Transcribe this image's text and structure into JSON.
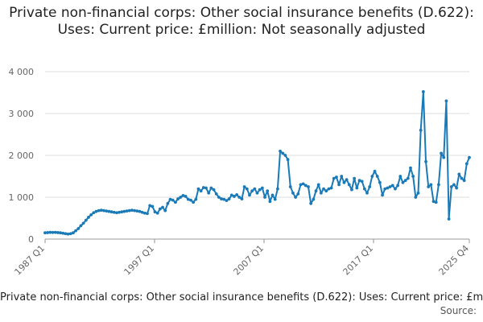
{
  "title": "Private non-financial corps: Other social insurance benefits (D.622): Uses: Current price: £million: Not seasonally adjusted",
  "footer": {
    "series_label": "Private non-financial corps: Other social insurance benefits (D.622): Uses: Current price: £million: Not seasonally adjusted",
    "source_label": "Source: "
  },
  "colors": {
    "line": "#1a7ab8",
    "grid": "#dddddd",
    "axis": "#999999"
  },
  "chart_data": {
    "type": "line",
    "title": "Private non-financial corps: Other social insurance benefits (D.622): Uses: Current price: £million: Not seasonally adjusted",
    "xlabel": "",
    "ylabel": "",
    "ylim": [
      0,
      4000
    ],
    "yticks": [
      0,
      1000,
      2000,
      3000,
      4000
    ],
    "ytick_labels": [
      "0",
      "1 000",
      "2 000",
      "3 000",
      "4 000"
    ],
    "xticks": [
      "1987 Q1",
      "1997 Q1",
      "2007 Q1",
      "2017 Q1",
      "2025 Q4"
    ],
    "x_start": "1987 Q1",
    "x_end": "2025 Q4",
    "grid": true,
    "series": [
      {
        "name": "Private non-financial corps: Other social insurance benefits (D.622)",
        "values": [
          150,
          155,
          160,
          158,
          160,
          155,
          150,
          140,
          130,
          120,
          130,
          150,
          200,
          250,
          320,
          380,
          450,
          520,
          580,
          630,
          660,
          680,
          690,
          680,
          670,
          660,
          650,
          640,
          630,
          640,
          650,
          660,
          670,
          680,
          690,
          680,
          670,
          660,
          640,
          620,
          610,
          800,
          780,
          650,
          620,
          720,
          760,
          680,
          850,
          950,
          930,
          880,
          960,
          1000,
          1040,
          1020,
          950,
          930,
          880,
          950,
          1200,
          1150,
          1230,
          1220,
          1100,
          1220,
          1180,
          1080,
          1000,
          960,
          950,
          920,
          960,
          1050,
          1020,
          1060,
          1000,
          960,
          1250,
          1200,
          1050,
          1150,
          1200,
          1100,
          1180,
          1220,
          1000,
          1150,
          900,
          1050,
          950,
          1200,
          2100,
          2050,
          2000,
          1900,
          1250,
          1100,
          1000,
          1080,
          1300,
          1320,
          1280,
          1250,
          850,
          950,
          1150,
          1300,
          1100,
          1200,
          1150,
          1200,
          1220,
          1450,
          1480,
          1300,
          1500,
          1350,
          1420,
          1300,
          1180,
          1450,
          1220,
          1400,
          1380,
          1200,
          1100,
          1250,
          1500,
          1620,
          1500,
          1350,
          1050,
          1200,
          1220,
          1250,
          1280,
          1200,
          1280,
          1500,
          1350,
          1400,
          1450,
          1700,
          1500,
          1000,
          1100,
          2600,
          3520,
          1850,
          1250,
          1300,
          900,
          880,
          1300,
          2050,
          1950,
          3300,
          480,
          1250,
          1300,
          1220,
          1550,
          1450,
          1400,
          1800,
          1950
        ]
      }
    ]
  }
}
